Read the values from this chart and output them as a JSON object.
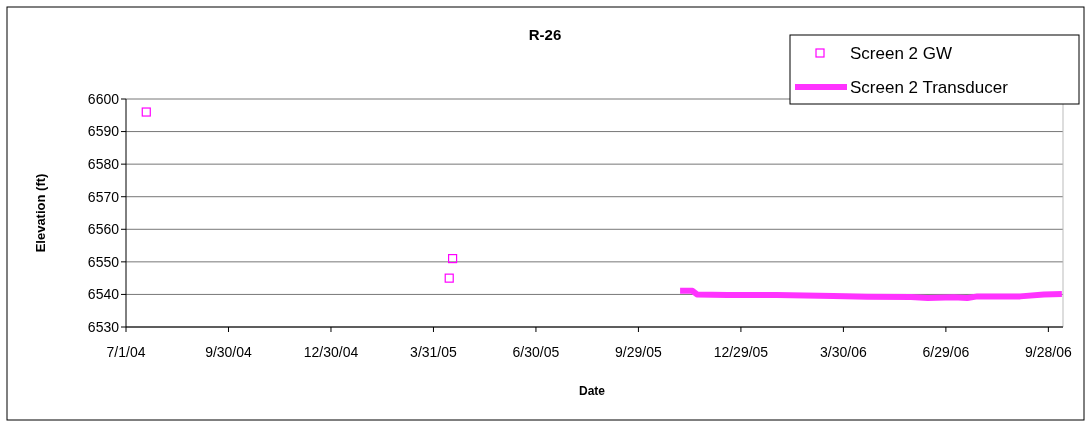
{
  "chart_data": {
    "type": "scatter",
    "title": "R-26",
    "xlabel": "Date",
    "ylabel": "Elevation (ft)",
    "xlim": [
      "2004-07-01",
      "2006-10-11"
    ],
    "xticks": [
      {
        "value": "2004-07-01",
        "label": "7/1/04"
      },
      {
        "value": "2004-09-30",
        "label": "9/30/04"
      },
      {
        "value": "2004-12-30",
        "label": "12/30/04"
      },
      {
        "value": "2005-03-31",
        "label": "3/31/05"
      },
      {
        "value": "2005-06-30",
        "label": "6/30/05"
      },
      {
        "value": "2005-09-29",
        "label": "9/29/05"
      },
      {
        "value": "2005-12-29",
        "label": "12/29/05"
      },
      {
        "value": "2006-03-30",
        "label": "3/30/06"
      },
      {
        "value": "2006-06-29",
        "label": "6/29/06"
      },
      {
        "value": "2006-09-28",
        "label": "9/28/06"
      }
    ],
    "ylim": [
      6530,
      6600
    ],
    "yticks": [
      6530,
      6540,
      6550,
      6560,
      6570,
      6580,
      6590,
      6600
    ],
    "grid": "y",
    "legend": "top right",
    "series": [
      {
        "name": "Screen 2 GW",
        "marker": "square",
        "color": "#ff00ff",
        "x": [
          "2004-07-19",
          "2005-04-14",
          "2005-04-17"
        ],
        "values": [
          6596,
          6545,
          6551
        ]
      },
      {
        "name": "Screen 2 Transducer",
        "type": "line",
        "marker": "none",
        "line_style": "solid",
        "color": "#ff33ff",
        "x": [
          "2005-11-05",
          "2005-11-16",
          "2005-11-20",
          "2005-12-17",
          "2006-01-30",
          "2006-03-21",
          "2006-04-20",
          "2006-05-29",
          "2006-06-13",
          "2006-07-06",
          "2006-07-18",
          "2006-07-27",
          "2006-09-03",
          "2006-09-24",
          "2006-10-10"
        ],
        "values": [
          6541.1,
          6541.1,
          6540.0,
          6539.8,
          6539.8,
          6539.5,
          6539.3,
          6539.2,
          6538.9,
          6539.1,
          6538.9,
          6539.4,
          6539.4,
          6540.0,
          6540.1
        ]
      }
    ]
  }
}
